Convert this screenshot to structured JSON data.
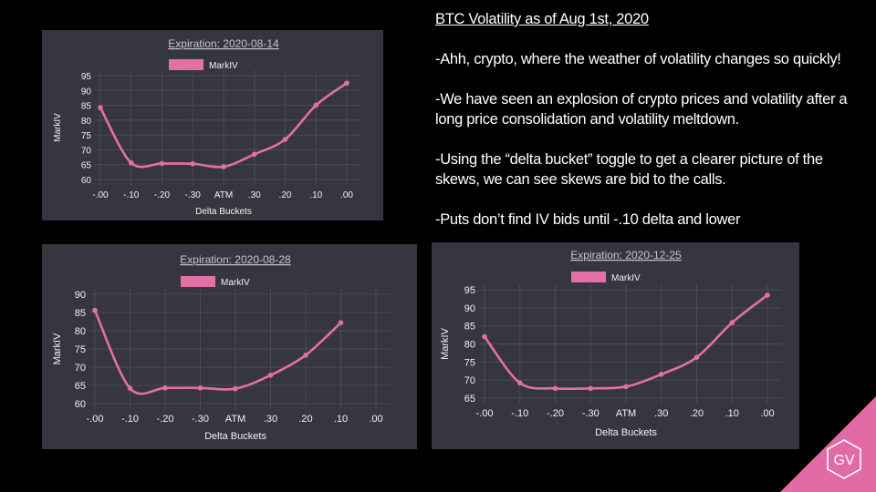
{
  "chart_data": [
    {
      "type": "line",
      "title": "Expiration: 2020-08-14",
      "xlabel": "Delta Buckets",
      "ylabel": "MarkIV",
      "categories": [
        "-.00",
        "-.10",
        "-.20",
        "-.30",
        "ATM",
        ".30",
        ".20",
        ".10",
        ".00"
      ],
      "series": [
        {
          "name": "MarkIV",
          "values": [
            84.2,
            65.6,
            65.4,
            65.3,
            64.3,
            68.5,
            73.5,
            85.0,
            92.5
          ]
        }
      ],
      "ylim": [
        60,
        95
      ],
      "yticks": [
        60,
        65,
        70,
        75,
        80,
        85,
        90,
        95
      ],
      "grid": true,
      "legend": "top-center"
    },
    {
      "type": "line",
      "title": "Expiration: 2020-08-28",
      "xlabel": "Delta Buckets",
      "ylabel": "MarkIV",
      "categories": [
        "-.00",
        "-.10",
        "-.20",
        "-.30",
        "ATM",
        ".30",
        ".20",
        ".10",
        ".00"
      ],
      "series": [
        {
          "name": "MarkIV",
          "values": [
            85.6,
            64.2,
            64.3,
            64.3,
            64.1,
            67.8,
            73.3,
            82.2,
            null
          ]
        }
      ],
      "ylim": [
        60,
        90
      ],
      "yticks": [
        60,
        65,
        70,
        75,
        80,
        85,
        90
      ],
      "grid": true,
      "legend": "top-center"
    },
    {
      "type": "line",
      "title": "Expiration: 2020-12-25",
      "xlabel": "Delta Buckets",
      "ylabel": "MarkIV",
      "categories": [
        "-.00",
        "-.10",
        "-.20",
        "-.30",
        "ATM",
        ".30",
        ".20",
        ".10",
        ".00"
      ],
      "series": [
        {
          "name": "MarkIV",
          "values": [
            82.0,
            69.2,
            67.7,
            67.7,
            68.2,
            71.6,
            76.3,
            85.9,
            93.5
          ]
        }
      ],
      "ylim": [
        65,
        95
      ],
      "yticks": [
        65,
        70,
        75,
        80,
        85,
        90,
        95
      ],
      "grid": true,
      "legend": "top-center"
    }
  ],
  "commentary": {
    "heading": "BTC Volatility as of Aug 1st, 2020",
    "paragraphs": [
      "-Ahh, crypto, where the weather of volatility changes so quickly!",
      "-We have seen an explosion of crypto prices and volatility after a long price consolidation and volatility meltdown.",
      "-Using the “delta bucket” toggle to get a clearer picture of the skews, we can see skews are bid to the calls.",
      "-Puts don’t find IV bids until -.10 delta and lower"
    ]
  },
  "logo": {
    "text": "GV"
  },
  "colors": {
    "background": "#000000",
    "panel": "#363641",
    "line": "#e46fa6",
    "grid": "#4b4b58",
    "text": "#ffffff",
    "axis_text": "#f2f2f2",
    "title": "#c6c6cc",
    "logo": "#e26aa5"
  }
}
